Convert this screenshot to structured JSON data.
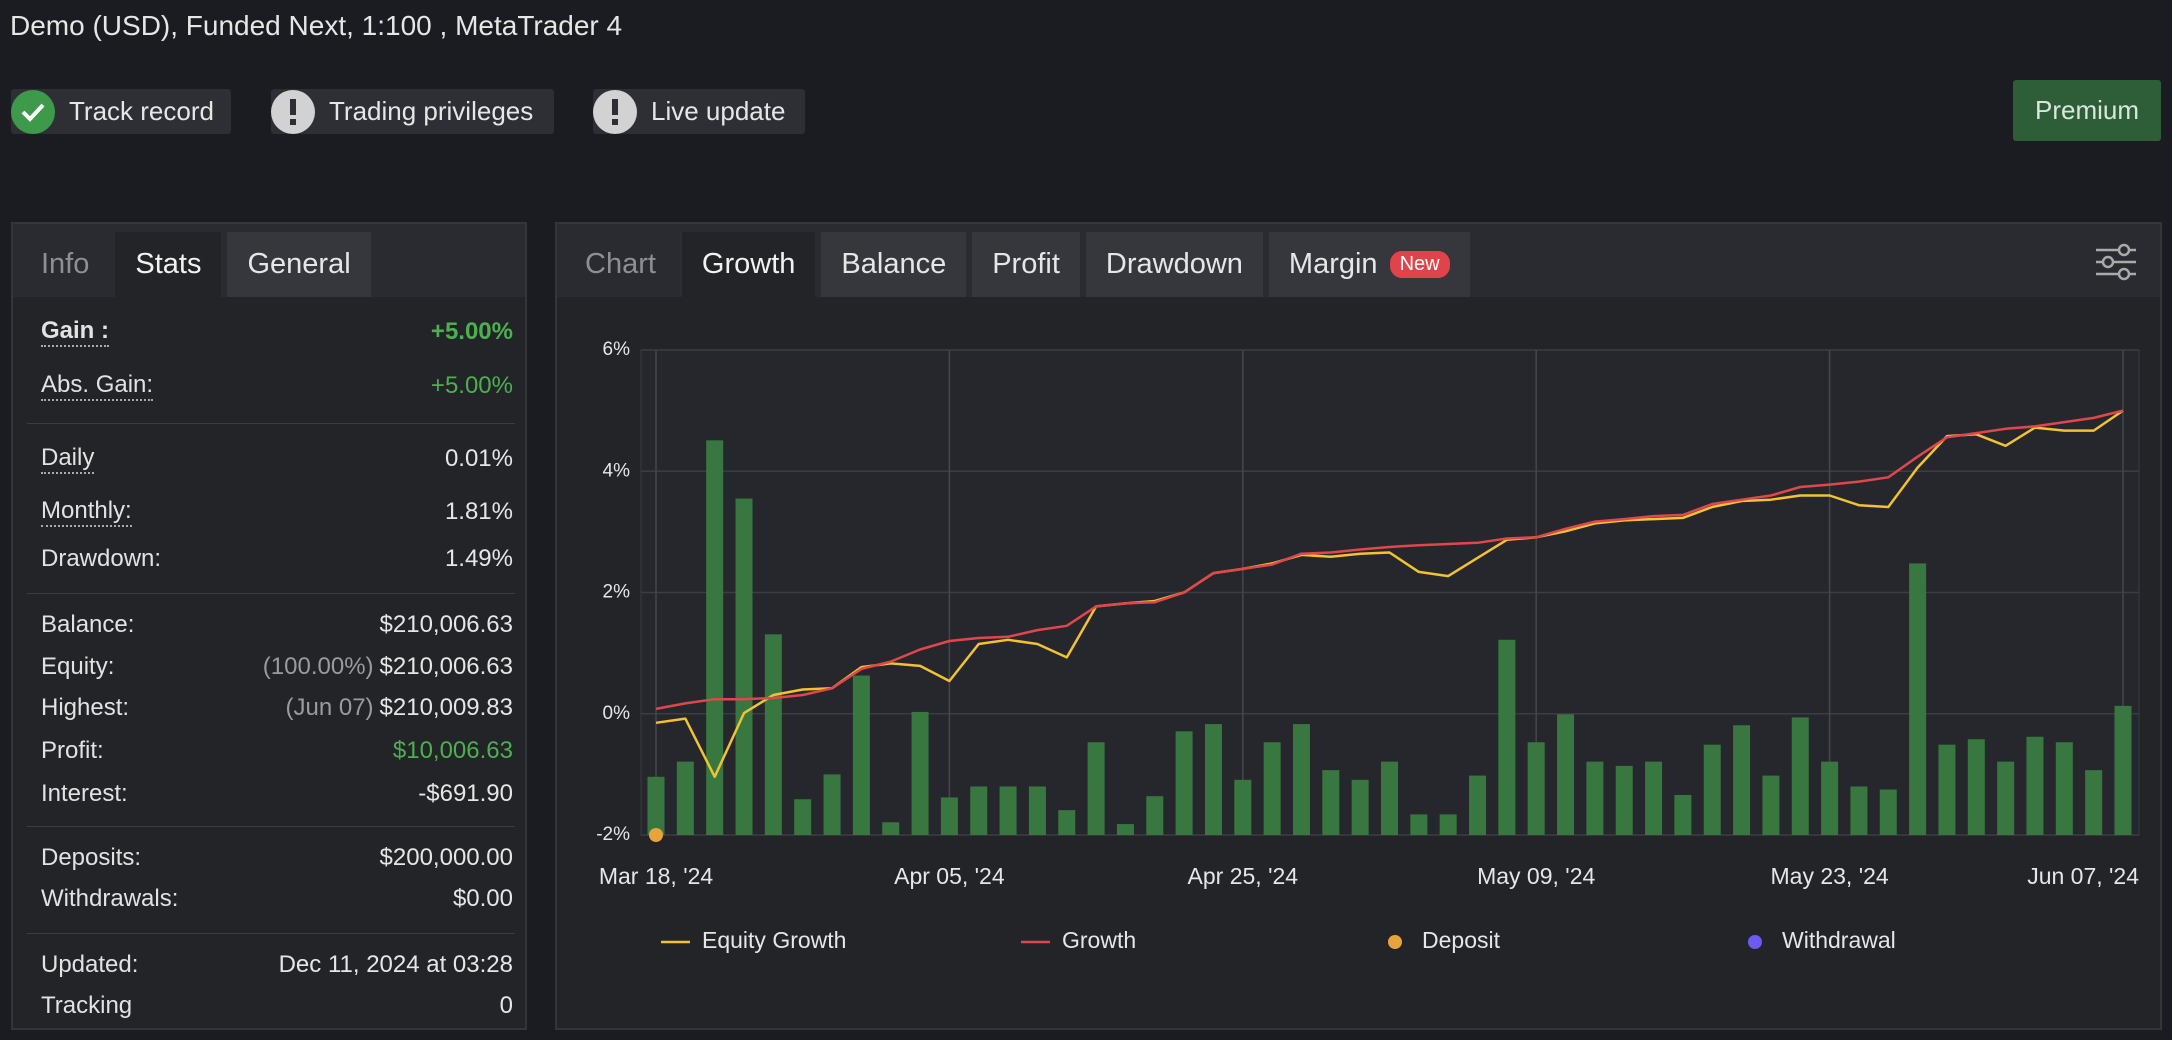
{
  "header": {
    "title": "Demo (USD), Funded Next, 1:100 , MetaTrader 4"
  },
  "badges": [
    {
      "label": "Track record",
      "status": "ok"
    },
    {
      "label": "Trading privileges",
      "status": "warn"
    },
    {
      "label": "Live update",
      "status": "warn"
    }
  ],
  "premium_button": "Premium",
  "stats_panel": {
    "tabs": [
      "Info",
      "Stats",
      "General"
    ],
    "active_tab": 1,
    "groups": [
      [
        {
          "label": "Gain :",
          "value": "+5.00%",
          "dotted": true,
          "bold": true,
          "color": "#4caf50"
        },
        {
          "label": "Abs. Gain:",
          "value": "+5.00%",
          "dotted": true,
          "color": "#4caf50"
        }
      ],
      [
        {
          "label": "Daily",
          "value": "0.01%",
          "dotted": true
        },
        {
          "label": "Monthly:",
          "value": "1.81%",
          "dotted": true
        },
        {
          "label": "Drawdown:",
          "value": "1.49%"
        }
      ],
      [
        {
          "label": "Balance:",
          "value": "$210,006.63"
        },
        {
          "label": "Equity:",
          "note": "(100.00%)",
          "value": "$210,006.63"
        },
        {
          "label": "Highest:",
          "note": "(Jun 07)",
          "value": "$210,009.83"
        },
        {
          "label": "Profit:",
          "value": "$10,006.63",
          "color": "#4caf50"
        },
        {
          "label": "Interest:",
          "value": "-$691.90"
        }
      ],
      [
        {
          "label": "Deposits:",
          "value": "$200,000.00"
        },
        {
          "label": "Withdrawals:",
          "value": "$0.00"
        }
      ],
      [
        {
          "label": "Updated:",
          "value": "Dec 11, 2024 at 03:28"
        },
        {
          "label": "Tracking",
          "value": "0"
        }
      ]
    ]
  },
  "chart_panel": {
    "tabs": [
      "Chart",
      "Growth",
      "Balance",
      "Profit",
      "Drawdown",
      "Margin"
    ],
    "active_tab": 1,
    "new_badge": "New"
  },
  "chart_data": {
    "type": "combo",
    "categories": [
      "Mar 18, '24",
      null,
      null,
      null,
      null,
      null,
      null,
      null,
      null,
      null,
      "Apr 05, '24",
      null,
      null,
      null,
      null,
      null,
      null,
      null,
      null,
      null,
      "Apr 25, '24",
      null,
      null,
      null,
      null,
      null,
      null,
      null,
      null,
      null,
      "May 09, '24",
      null,
      null,
      null,
      null,
      null,
      null,
      null,
      null,
      null,
      "May 23, '24",
      null,
      null,
      null,
      null,
      null,
      null,
      null,
      null,
      null,
      "Jun 07, '24"
    ],
    "ylim": [
      -2,
      6
    ],
    "yticks": [
      {
        "value": -2,
        "label": "-2%"
      },
      {
        "value": 0,
        "label": "0%"
      },
      {
        "value": 2,
        "label": "2%"
      },
      {
        "value": 4,
        "label": "4%"
      },
      {
        "value": 6,
        "label": "6%"
      }
    ],
    "grid": true,
    "series": [
      {
        "type": "bar",
        "color": "#38773f",
        "values": [
          -1.04,
          -0.79,
          4.51,
          3.55,
          1.31,
          -1.41,
          -1.0,
          0.63,
          -1.79,
          0.03,
          -1.38,
          -1.2,
          -1.2,
          -1.2,
          -1.59,
          -0.47,
          -1.82,
          -1.36,
          -0.29,
          -0.17,
          -1.09,
          -0.47,
          -0.17,
          -0.93,
          -1.09,
          -0.79,
          -1.66,
          -1.66,
          -1.02,
          1.22,
          -0.47,
          -0.01,
          -0.79,
          -0.86,
          -0.79,
          -1.34,
          -0.51,
          -0.19,
          -1.02,
          -0.06,
          -0.79,
          -1.2,
          -1.25,
          2.48,
          -0.51,
          -0.42,
          -0.79,
          -0.38,
          -0.47,
          -0.93,
          0.13
        ]
      },
      {
        "type": "line",
        "name": "Equity Growth",
        "color": "#f2c232",
        "values": [
          -0.15,
          -0.08,
          -1.04,
          0.01,
          0.31,
          0.4,
          0.42,
          0.77,
          0.83,
          0.79,
          0.54,
          1.15,
          1.22,
          1.15,
          0.93,
          1.77,
          1.82,
          1.86,
          2.0,
          2.32,
          2.39,
          2.48,
          2.62,
          2.59,
          2.64,
          2.66,
          2.34,
          2.27,
          2.57,
          2.87,
          2.91,
          3.01,
          3.14,
          3.19,
          3.21,
          3.23,
          3.41,
          3.51,
          3.53,
          3.6,
          3.6,
          3.44,
          3.41,
          4.06,
          4.58,
          4.61,
          4.42,
          4.72,
          4.67,
          4.67,
          5.0
        ]
      },
      {
        "type": "line",
        "name": "Growth",
        "color": "#e0474c",
        "values": [
          0.08,
          0.17,
          0.24,
          0.24,
          0.26,
          0.31,
          0.42,
          0.74,
          0.86,
          1.06,
          1.2,
          1.25,
          1.27,
          1.38,
          1.45,
          1.77,
          1.82,
          1.84,
          2.0,
          2.32,
          2.39,
          2.46,
          2.64,
          2.66,
          2.71,
          2.75,
          2.78,
          2.8,
          2.82,
          2.89,
          2.91,
          3.05,
          3.17,
          3.21,
          3.26,
          3.28,
          3.46,
          3.53,
          3.6,
          3.74,
          3.78,
          3.83,
          3.9,
          4.24,
          4.56,
          4.63,
          4.7,
          4.74,
          4.81,
          4.88,
          5.0
        ]
      },
      {
        "type": "scatter",
        "name": "Deposit",
        "color": "#e8a33d",
        "values": [
          -2,
          null,
          null,
          null,
          null,
          null,
          null,
          null,
          null,
          null,
          null,
          null,
          null,
          null,
          null,
          null,
          null,
          null,
          null,
          null,
          null,
          null,
          null,
          null,
          null,
          null,
          null,
          null,
          null,
          null,
          null,
          null,
          null,
          null,
          null,
          null,
          null,
          null,
          null,
          null,
          null,
          null,
          null,
          null,
          null,
          null,
          null,
          null,
          null,
          null,
          null
        ]
      },
      {
        "type": "scatter",
        "name": "Withdrawal",
        "color": "#6a5cf0"
      }
    ]
  }
}
